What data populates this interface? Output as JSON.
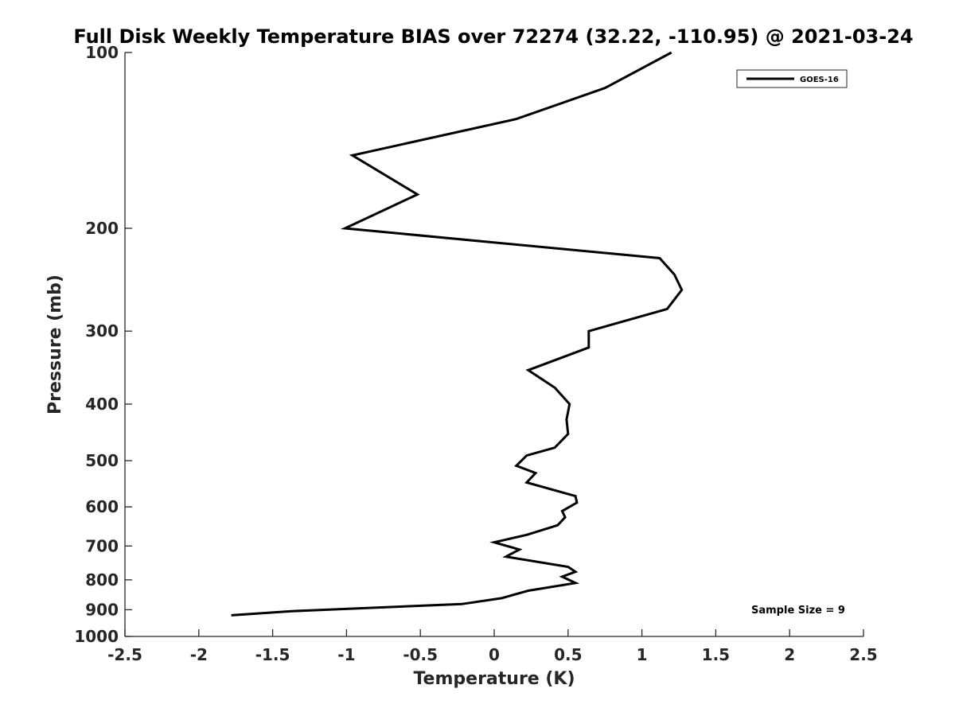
{
  "chart_data": {
    "type": "line",
    "title": "Full Disk Weekly Temperature BIAS over 72274 (32.22, -110.95) @ 2021-03-24",
    "xlabel": "Temperature (K)",
    "ylabel": "Pressure (mb)",
    "xlim": [
      -2.5,
      2.5
    ],
    "ylim": [
      100,
      1000
    ],
    "y_scale": "log",
    "y_reversed": true,
    "x_ticks": [
      "-2.5",
      "-2",
      "-1.5",
      "-1",
      "-0.5",
      "0",
      "0.5",
      "1",
      "1.5",
      "2",
      "2.5"
    ],
    "y_ticks": [
      "100",
      "200",
      "300",
      "400",
      "500",
      "600",
      "700",
      "800",
      "900",
      "1000"
    ],
    "grid": false,
    "legend_position": "top-right",
    "series": [
      {
        "name": "GOES-16",
        "color": "#000000",
        "x": [
          1.2,
          0.75,
          0.15,
          -0.96,
          -0.52,
          -1.01,
          1.12,
          1.22,
          1.27,
          1.17,
          0.64,
          0.64,
          0.23,
          0.41,
          0.51,
          0.49,
          0.5,
          0.41,
          0.22,
          0.15,
          0.28,
          0.22,
          0.55,
          0.56,
          0.46,
          0.48,
          0.43,
          0.22,
          0.0,
          0.17,
          0.08,
          0.5,
          0.55,
          0.46,
          0.55,
          0.23,
          0.05,
          -0.22,
          -1.37,
          -1.78
        ],
        "y": [
          100,
          115,
          130,
          150,
          175,
          200,
          225,
          240,
          255,
          275,
          300,
          320,
          350,
          375,
          400,
          425,
          450,
          475,
          490,
          510,
          525,
          545,
          575,
          590,
          610,
          625,
          645,
          670,
          690,
          710,
          730,
          760,
          775,
          790,
          810,
          835,
          860,
          880,
          905,
          920
        ]
      }
    ],
    "annotations": [
      "Sample Size = 9"
    ]
  }
}
